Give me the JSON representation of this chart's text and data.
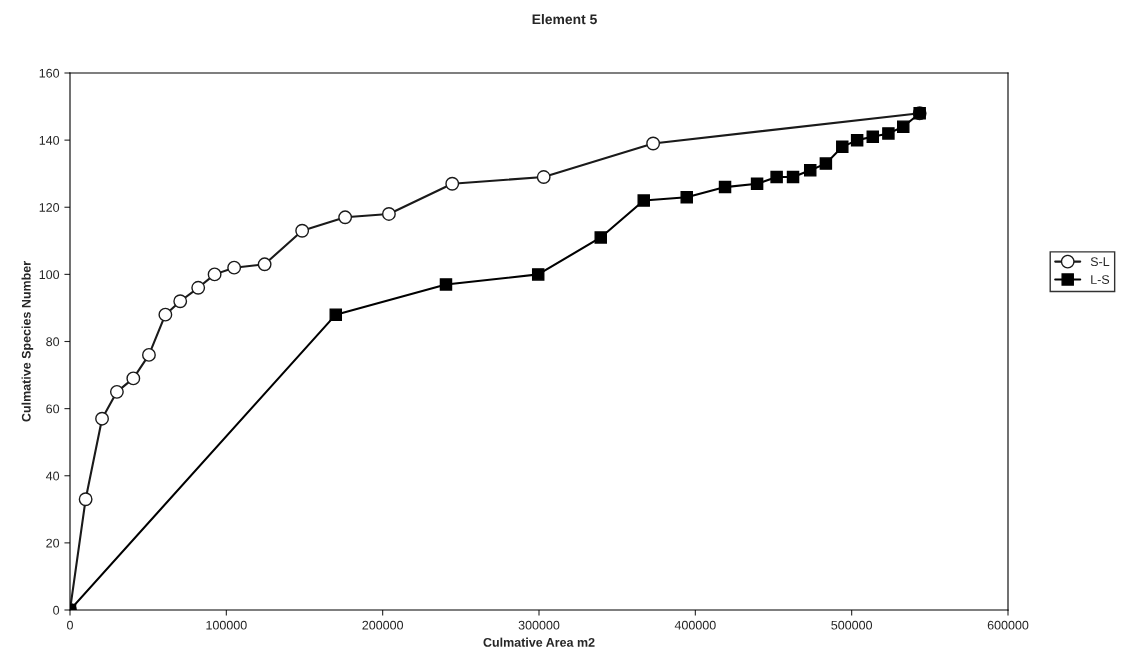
{
  "chart_data": {
    "type": "line",
    "title": "Element 5",
    "xlabel": "Culmative Area m2",
    "ylabel": "Culmative Species Number",
    "xlim": [
      0,
      600000
    ],
    "xticks": [
      0,
      100000,
      200000,
      300000,
      400000,
      500000,
      600000
    ],
    "ylim": [
      0,
      160
    ],
    "yticks": [
      0,
      20,
      40,
      60,
      80,
      100,
      120,
      140,
      160
    ],
    "grid": false,
    "legend": "right",
    "series": [
      {
        "name": "S-L",
        "color": "#1a1a1a",
        "marker": "circle",
        "x": [
          0,
          10000,
          20500,
          30000,
          40500,
          50500,
          61000,
          70500,
          82000,
          92500,
          105000,
          124500,
          148500,
          176000,
          204000,
          244500,
          303000,
          373000,
          543500
        ],
        "values": [
          0,
          33,
          57,
          65,
          69,
          76,
          88,
          92,
          96,
          100,
          102,
          103,
          113,
          117,
          118,
          127,
          129,
          139,
          148
        ]
      },
      {
        "name": "L-S",
        "color": "#000000",
        "marker": "square",
        "x": [
          0,
          170000,
          240500,
          299500,
          339500,
          367000,
          394500,
          419000,
          439500,
          452000,
          462500,
          473500,
          483500,
          494000,
          503500,
          513500,
          523500,
          533000,
          543500
        ],
        "values": [
          0,
          88,
          97,
          100,
          111,
          122,
          123,
          126,
          127,
          129,
          129,
          131,
          133,
          138,
          140,
          141,
          142,
          144,
          148
        ]
      }
    ]
  }
}
